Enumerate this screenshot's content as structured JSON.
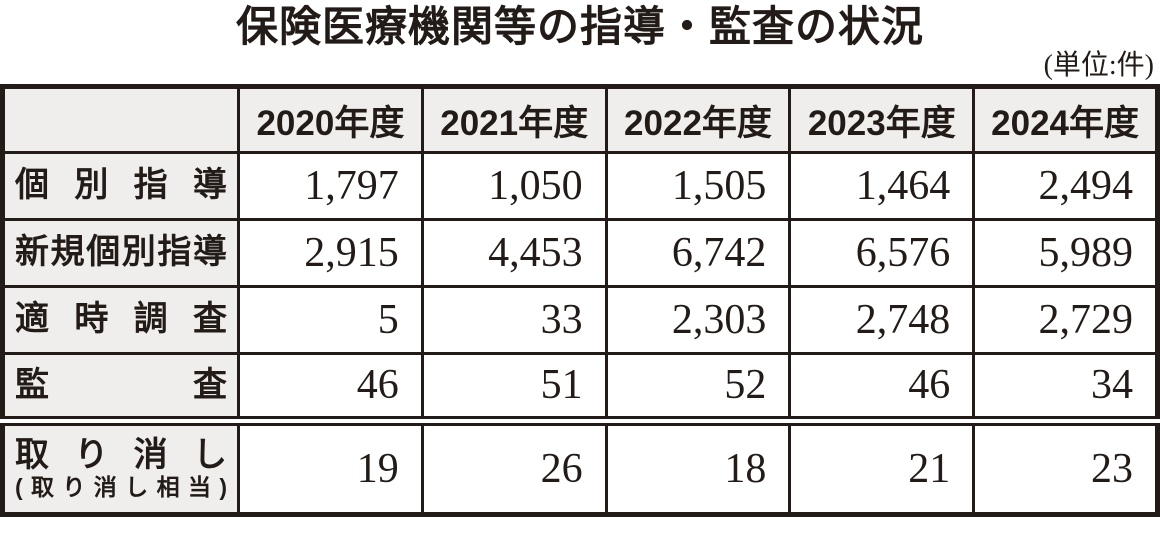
{
  "title": "保険医療機関等の指導・監査の状況",
  "unit_note": "(単位:件)",
  "table": {
    "columns": [
      "",
      "2020年度",
      "2021年度",
      "2022年度",
      "2023年度",
      "2024年度"
    ],
    "rows": [
      {
        "label": "個別指導",
        "values": [
          "1,797",
          "1,050",
          "1,505",
          "1,464",
          "2,494"
        ]
      },
      {
        "label": "新規個別指導",
        "values": [
          "2,915",
          "4,453",
          "6,742",
          "6,576",
          "5,989"
        ]
      },
      {
        "label": "適時調査",
        "values": [
          "5",
          "33",
          "2,303",
          "2,748",
          "2,729"
        ]
      },
      {
        "label": "監査",
        "values": [
          "46",
          "51",
          "52",
          "46",
          "34"
        ]
      },
      {
        "label": "取り消し",
        "sublabel": "(取り消し相当)",
        "values": [
          "19",
          "26",
          "18",
          "21",
          "23"
        ]
      }
    ]
  },
  "chart_data": {
    "type": "table",
    "title": "保険医療機関等の指導・監査の状況",
    "unit": "件",
    "categories": [
      "2020年度",
      "2021年度",
      "2022年度",
      "2023年度",
      "2024年度"
    ],
    "series": [
      {
        "name": "個別指導",
        "values": [
          1797,
          1050,
          1505,
          1464,
          2494
        ]
      },
      {
        "name": "新規個別指導",
        "values": [
          2915,
          4453,
          6742,
          6576,
          5989
        ]
      },
      {
        "name": "適時調査",
        "values": [
          5,
          33,
          2303,
          2748,
          2729
        ]
      },
      {
        "name": "監査",
        "values": [
          46,
          51,
          52,
          46,
          34
        ]
      },
      {
        "name": "取り消し(取り消し相当)",
        "values": [
          19,
          26,
          18,
          21,
          23
        ]
      }
    ]
  },
  "colors": {
    "header_bg": "#efeeec",
    "border": "#221b17",
    "text": "#221b17",
    "cell_bg": "#ffffff"
  }
}
